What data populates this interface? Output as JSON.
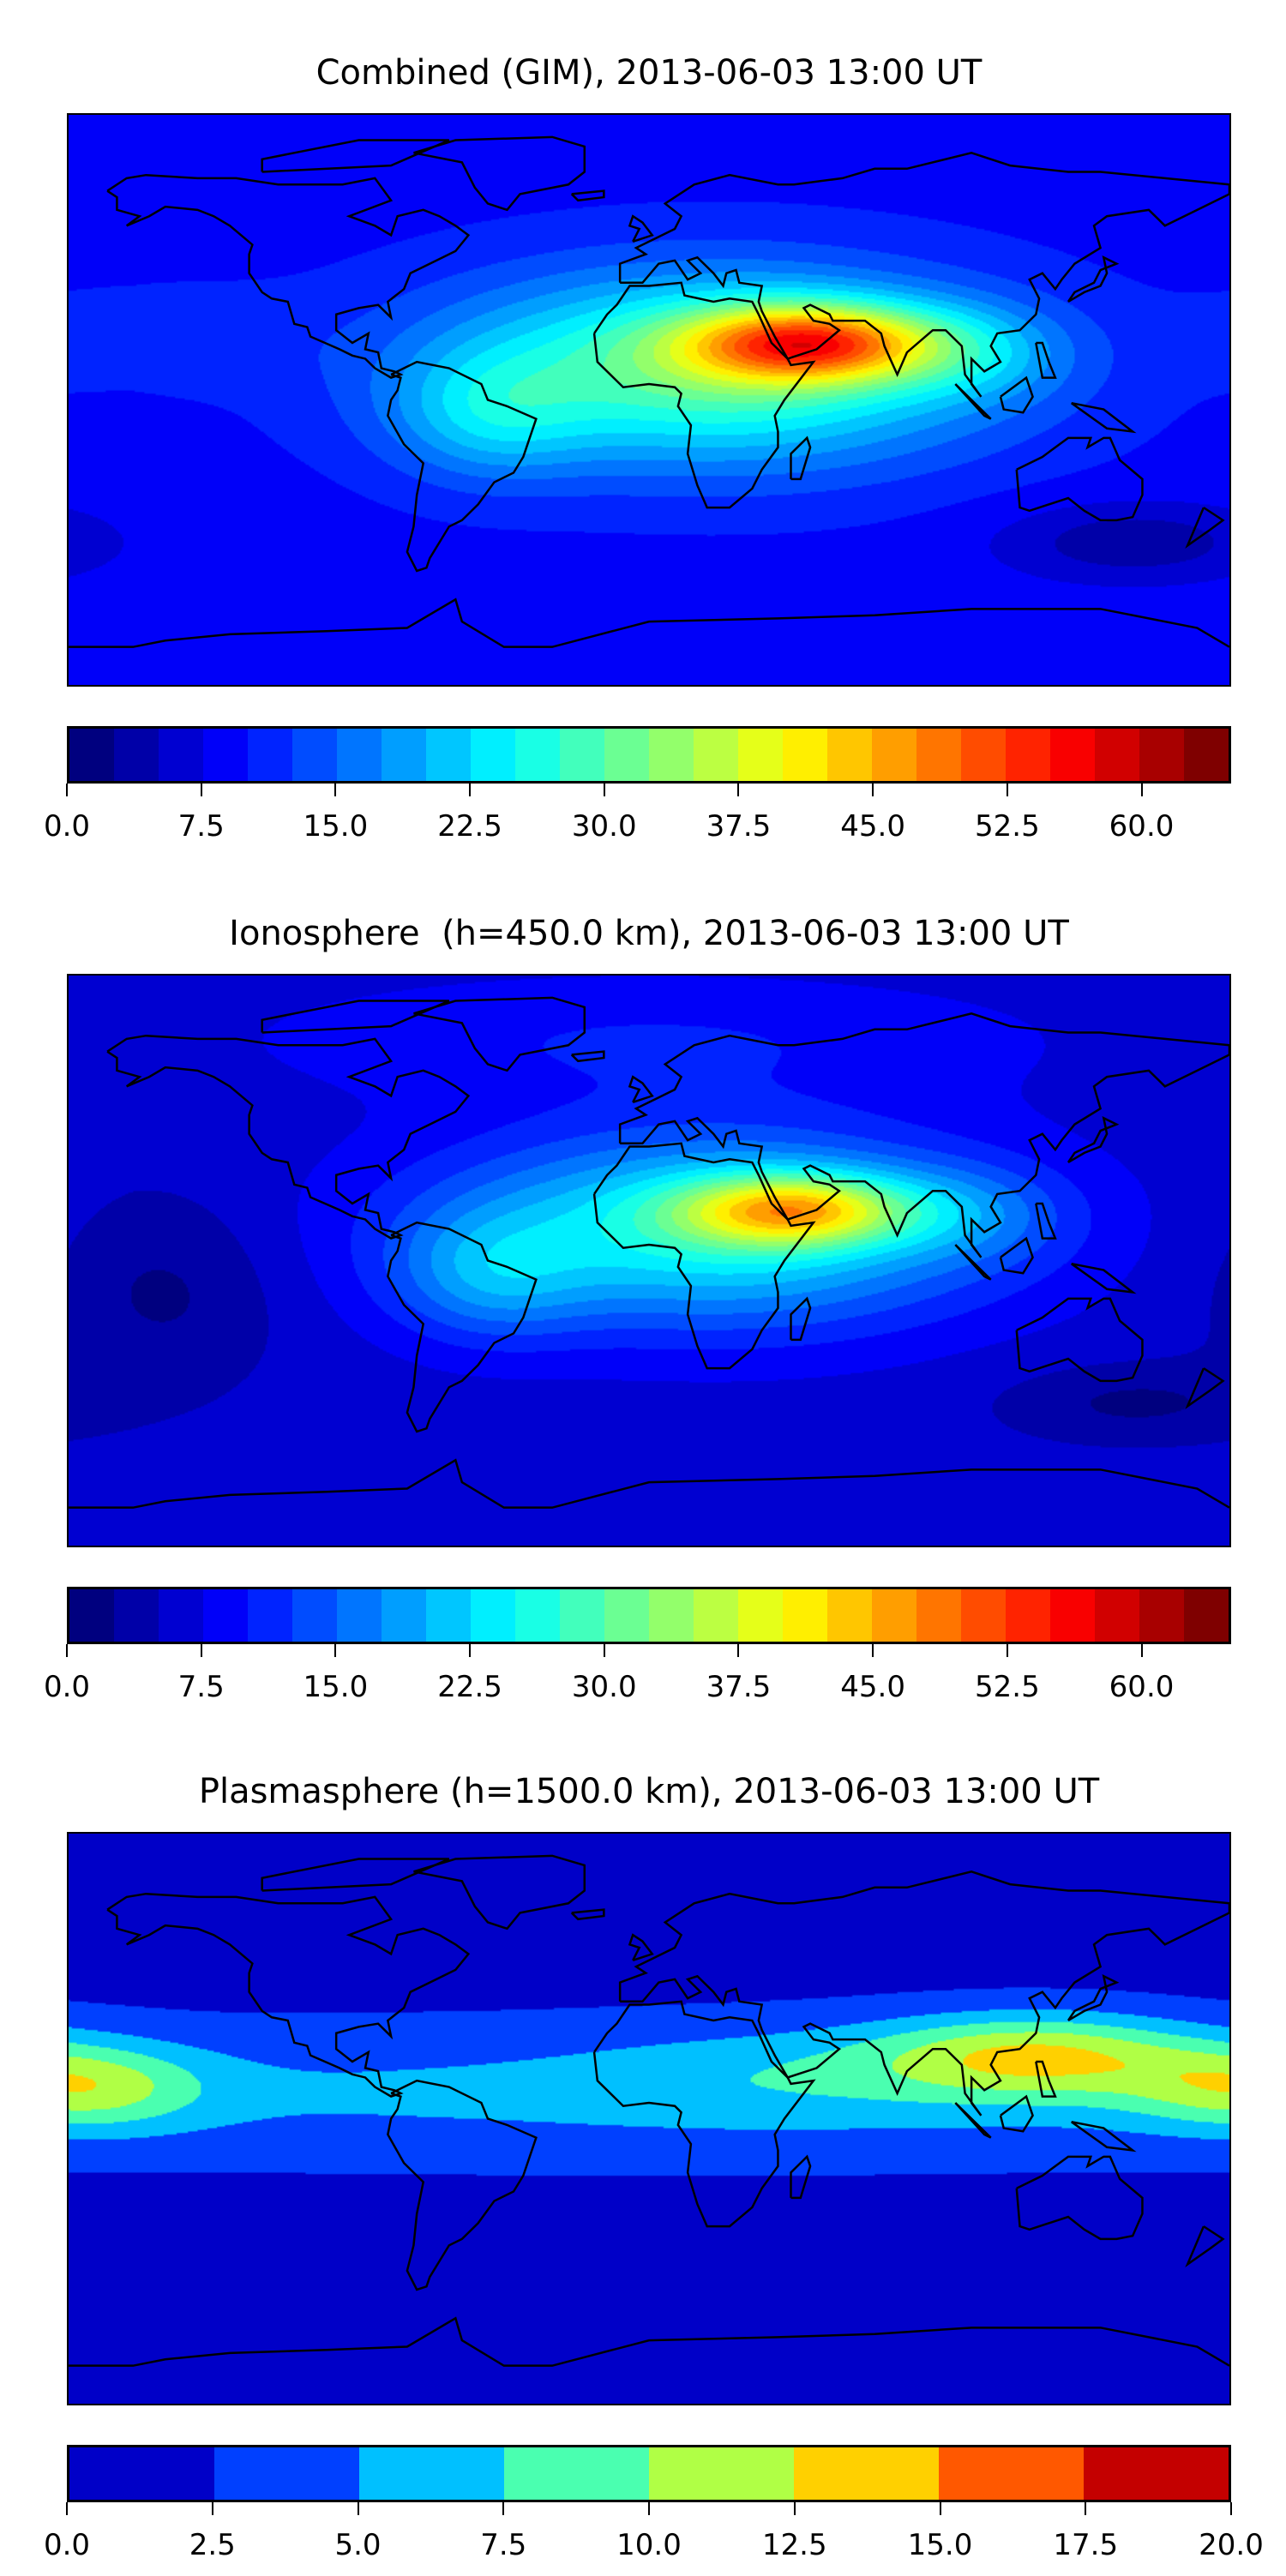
{
  "chart_data": [
    {
      "type": "heatmap",
      "subtype": "filled-contour-map",
      "title": "Combined (GIM), 2013-06-03 13:00 UT",
      "xlim": [
        -180,
        180
      ],
      "ylim": [
        -90,
        90
      ],
      "colormap": "jet",
      "levels": {
        "min": 0,
        "max": 65,
        "step": 2.5
      },
      "colorbar_ticks": [
        "0.0",
        "7.5",
        "15.0",
        "22.5",
        "30.0",
        "37.5",
        "45.0",
        "52.5",
        "60.0"
      ],
      "colorbar_tick_values": [
        0,
        7.5,
        15,
        22.5,
        30,
        37.5,
        45,
        52.5,
        60
      ],
      "field_features": [
        {
          "kind": "peak",
          "lon": 50,
          "lat": 18,
          "value": 62
        },
        {
          "kind": "low",
          "lon": 150,
          "lat": -45,
          "value": 4
        }
      ]
    },
    {
      "type": "heatmap",
      "subtype": "filled-contour-map",
      "title": "Ionosphere  (h=450.0 km), 2013-06-03 13:00 UT",
      "xlim": [
        -180,
        180
      ],
      "ylim": [
        -90,
        90
      ],
      "colormap": "jet",
      "levels": {
        "min": 0,
        "max": 65,
        "step": 2.5
      },
      "colorbar_ticks": [
        "0.0",
        "7.5",
        "15.0",
        "22.5",
        "30.0",
        "37.5",
        "45.0",
        "52.5",
        "60.0"
      ],
      "colorbar_tick_values": [
        0,
        7.5,
        15,
        22.5,
        30,
        37.5,
        45,
        52.5,
        60
      ],
      "field_features": [
        {
          "kind": "peak",
          "lon": 45,
          "lat": 16,
          "value": 50
        },
        {
          "kind": "low",
          "lon": -150,
          "lat": -10,
          "value": 2
        }
      ]
    },
    {
      "type": "heatmap",
      "subtype": "filled-contour-map",
      "title": "Plasmasphere (h=1500.0 km), 2013-06-03 13:00 UT",
      "xlim": [
        -180,
        180
      ],
      "ylim": [
        -90,
        90
      ],
      "colormap": "discrete",
      "colors": [
        "#0000c8",
        "#0040ff",
        "#00c0ff",
        "#4affb0",
        "#b0ff45",
        "#ffd000",
        "#ff5800",
        "#c40000"
      ],
      "levels": {
        "min": 0,
        "max": 20,
        "step": 2.5
      },
      "colorbar_ticks": [
        "0.0",
        "2.5",
        "5.0",
        "7.5",
        "10.0",
        "12.5",
        "15.0",
        "17.5",
        "20.0"
      ],
      "colorbar_tick_values": [
        0,
        2.5,
        5,
        7.5,
        10,
        12.5,
        15,
        17.5,
        20
      ],
      "field_features": [
        {
          "kind": "peak",
          "lon": 120,
          "lat": 20,
          "value": 14
        },
        {
          "kind": "peak",
          "lon": -175,
          "lat": 10,
          "value": 10
        }
      ]
    }
  ]
}
